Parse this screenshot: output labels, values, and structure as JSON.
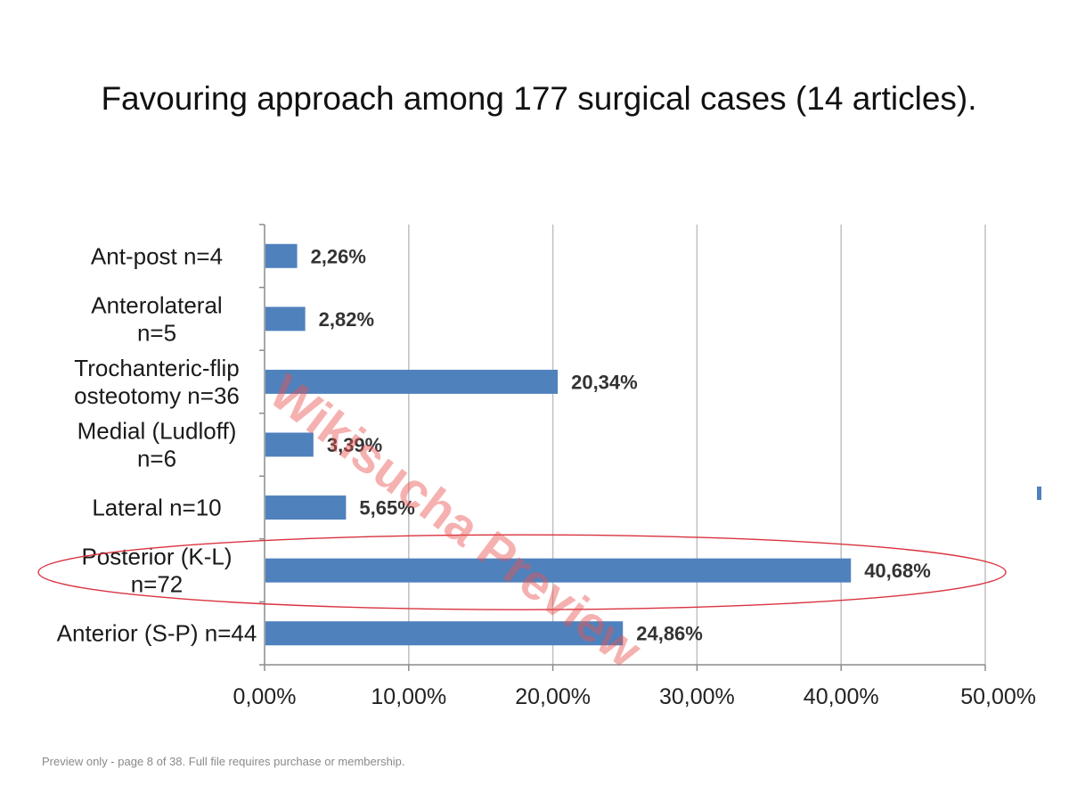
{
  "slide": {
    "title": "Favouring approach among 177 surgical cases (14 articles).",
    "footer_note": "Preview only - page 8 of 38. Full file requires purchase or membership.",
    "watermark_text": "Wikisucha Preview"
  },
  "chart_data": {
    "type": "bar",
    "orientation": "horizontal",
    "title": "",
    "xlabel": "",
    "ylabel": "",
    "xlim": [
      0,
      50
    ],
    "x_ticks": [
      "0,00%",
      "10,00%",
      "20,00%",
      "30,00%",
      "40,00%",
      "50,00%"
    ],
    "grid": "vertical",
    "categories": [
      [
        "Ant-post n=4"
      ],
      [
        "Anterolateral",
        "n=5"
      ],
      [
        "Trochanteric-flip",
        "osteotomy n=36"
      ],
      [
        "Medial  (Ludloff)",
        "n=6"
      ],
      [
        "Lateral n=10"
      ],
      [
        "Posterior (K-L)",
        "n=72"
      ],
      [
        "Anterior (S-P) n=44"
      ]
    ],
    "values": [
      2.26,
      2.82,
      20.34,
      3.39,
      5.65,
      40.68,
      24.86
    ],
    "data_labels": [
      "2,26%",
      "2,82%",
      "20,34%",
      "3,39%",
      "5,65%",
      "40,68%",
      "24,86%"
    ],
    "highlighted_category_index": 5,
    "colors": {
      "bar": "#4f81bd",
      "highlight_ellipse": "#d9333f",
      "grid": "#c0c0c0",
      "watermark": "#e8524f"
    }
  }
}
